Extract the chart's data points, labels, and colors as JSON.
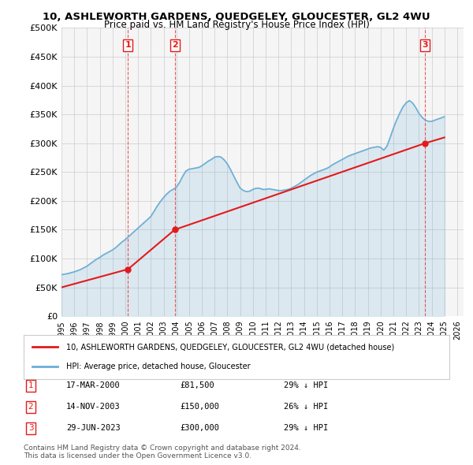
{
  "title": "10, ASHLEWORTH GARDENS, QUEDGELEY, GLOUCESTER, GL2 4WU",
  "subtitle": "Price paid vs. HM Land Registry's House Price Index (HPI)",
  "ylabel_ticks": [
    "£0",
    "£50K",
    "£100K",
    "£150K",
    "£200K",
    "£250K",
    "£300K",
    "£350K",
    "£400K",
    "£450K",
    "£500K"
  ],
  "ytick_values": [
    0,
    50000,
    100000,
    150000,
    200000,
    250000,
    300000,
    350000,
    400000,
    450000,
    500000
  ],
  "ylim": [
    0,
    500000
  ],
  "xmin_year": 1995.0,
  "xmax_year": 2026.5,
  "xtick_years": [
    1995,
    1996,
    1997,
    1998,
    1999,
    2000,
    2001,
    2002,
    2003,
    2004,
    2005,
    2006,
    2007,
    2008,
    2009,
    2010,
    2011,
    2012,
    2013,
    2014,
    2015,
    2016,
    2017,
    2018,
    2019,
    2020,
    2021,
    2022,
    2023,
    2024,
    2025,
    2026
  ],
  "hpi_color": "#6baed6",
  "price_color": "#e31a1c",
  "grid_color": "#cccccc",
  "bg_color": "#ffffff",
  "plot_bg_color": "#f5f5f5",
  "transaction_dates": [
    2000.21,
    2003.87,
    2023.49
  ],
  "transaction_prices": [
    81500,
    150000,
    300000
  ],
  "transaction_labels": [
    "1",
    "2",
    "3"
  ],
  "legend_label_price": "10, ASHLEWORTH GARDENS, QUEDGELEY, GLOUCESTER, GL2 4WU (detached house)",
  "legend_label_hpi": "HPI: Average price, detached house, Gloucester",
  "table_data": [
    [
      "1",
      "17-MAR-2000",
      "£81,500",
      "29% ↓ HPI"
    ],
    [
      "2",
      "14-NOV-2003",
      "£150,000",
      "26% ↓ HPI"
    ],
    [
      "3",
      "29-JUN-2023",
      "£300,000",
      "29% ↓ HPI"
    ]
  ],
  "footer_text": "Contains HM Land Registry data © Crown copyright and database right 2024.\nThis data is licensed under the Open Government Licence v3.0.",
  "hpi_data_x": [
    1995.0,
    1995.25,
    1995.5,
    1995.75,
    1996.0,
    1996.25,
    1996.5,
    1996.75,
    1997.0,
    1997.25,
    1997.5,
    1997.75,
    1998.0,
    1998.25,
    1998.5,
    1998.75,
    1999.0,
    1999.25,
    1999.5,
    1999.75,
    2000.0,
    2000.25,
    2000.5,
    2000.75,
    2001.0,
    2001.25,
    2001.5,
    2001.75,
    2002.0,
    2002.25,
    2002.5,
    2002.75,
    2003.0,
    2003.25,
    2003.5,
    2003.75,
    2004.0,
    2004.25,
    2004.5,
    2004.75,
    2005.0,
    2005.25,
    2005.5,
    2005.75,
    2006.0,
    2006.25,
    2006.5,
    2006.75,
    2007.0,
    2007.25,
    2007.5,
    2007.75,
    2008.0,
    2008.25,
    2008.5,
    2008.75,
    2009.0,
    2009.25,
    2009.5,
    2009.75,
    2010.0,
    2010.25,
    2010.5,
    2010.75,
    2011.0,
    2011.25,
    2011.5,
    2011.75,
    2012.0,
    2012.25,
    2012.5,
    2012.75,
    2013.0,
    2013.25,
    2013.5,
    2013.75,
    2014.0,
    2014.25,
    2014.5,
    2014.75,
    2015.0,
    2015.25,
    2015.5,
    2015.75,
    2016.0,
    2016.25,
    2016.5,
    2016.75,
    2017.0,
    2017.25,
    2017.5,
    2017.75,
    2018.0,
    2018.25,
    2018.5,
    2018.75,
    2019.0,
    2019.25,
    2019.5,
    2019.75,
    2020.0,
    2020.25,
    2020.5,
    2020.75,
    2021.0,
    2021.25,
    2021.5,
    2021.75,
    2022.0,
    2022.25,
    2022.5,
    2022.75,
    2023.0,
    2023.25,
    2023.5,
    2023.75,
    2024.0,
    2024.25,
    2024.5,
    2024.75,
    2025.0
  ],
  "hpi_data_y": [
    72000,
    73000,
    74000,
    75500,
    77000,
    79000,
    81000,
    84000,
    87000,
    91000,
    95000,
    99000,
    102000,
    106000,
    109000,
    112000,
    115000,
    119000,
    124000,
    129000,
    133000,
    138000,
    143000,
    148000,
    153000,
    158000,
    163000,
    168000,
    173000,
    182000,
    191000,
    199000,
    206000,
    212000,
    217000,
    220000,
    224000,
    232000,
    243000,
    252000,
    255000,
    256000,
    257000,
    258000,
    261000,
    265000,
    269000,
    272000,
    276000,
    277000,
    276000,
    271000,
    264000,
    254000,
    243000,
    232000,
    222000,
    218000,
    216000,
    217000,
    220000,
    222000,
    222000,
    220000,
    220000,
    221000,
    220000,
    219000,
    218000,
    218000,
    219000,
    220000,
    222000,
    225000,
    228000,
    232000,
    236000,
    240000,
    244000,
    247000,
    250000,
    252000,
    254000,
    256000,
    259000,
    263000,
    266000,
    269000,
    272000,
    275000,
    278000,
    280000,
    282000,
    284000,
    286000,
    288000,
    290000,
    292000,
    293000,
    294000,
    293000,
    288000,
    295000,
    310000,
    326000,
    340000,
    352000,
    363000,
    370000,
    374000,
    370000,
    362000,
    352000,
    345000,
    340000,
    338000,
    338000,
    340000,
    342000,
    344000,
    346000
  ],
  "price_data_x": [
    1995.0,
    2000.21,
    2003.87,
    2023.49,
    2025.0
  ],
  "price_data_y": [
    50000,
    81500,
    150000,
    300000,
    310000
  ]
}
